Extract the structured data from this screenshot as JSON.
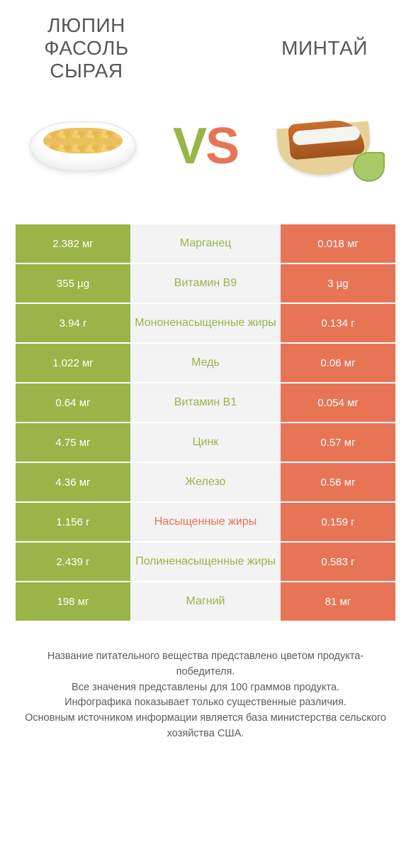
{
  "colors": {
    "left_bg": "#99b548",
    "right_bg": "#e87456",
    "mid_bg": "#f3f3f3",
    "title_color": "#555759",
    "value_color": "#ffffff",
    "footer_color": "#5a5c5e"
  },
  "left_title": "ЛЮПИН ФАСОЛЬ СЫРАЯ",
  "right_title": "МИНТАЙ",
  "vs_v": "V",
  "vs_s": "S",
  "rows": [
    {
      "left": "2.382 мг",
      "label": "Марганец",
      "right": "0.018 мг",
      "label_winner": "left"
    },
    {
      "left": "355 µg",
      "label": "Витамин B9",
      "right": "3 µg",
      "label_winner": "left"
    },
    {
      "left": "3.94 г",
      "label": "Мононенасыщенные жиры",
      "right": "0.134 г",
      "label_winner": "left"
    },
    {
      "left": "1.022 мг",
      "label": "Медь",
      "right": "0.06 мг",
      "label_winner": "left"
    },
    {
      "left": "0.64 мг",
      "label": "Витамин B1",
      "right": "0.054 мг",
      "label_winner": "left"
    },
    {
      "left": "4.75 мг",
      "label": "Цинк",
      "right": "0.57 мг",
      "label_winner": "left"
    },
    {
      "left": "4.36 мг",
      "label": "Железо",
      "right": "0.56 мг",
      "label_winner": "left"
    },
    {
      "left": "1.156 г",
      "label": "Насыщенные жиры",
      "right": "0.159 г",
      "label_winner": "right"
    },
    {
      "left": "2.439 г",
      "label": "Полиненасыщенные жиры",
      "right": "0.583 г",
      "label_winner": "left"
    },
    {
      "left": "198 мг",
      "label": "Магний",
      "right": "81 мг",
      "label_winner": "left"
    }
  ],
  "footer": {
    "line1": "Название питательного вещества представлено цветом продукта-победителя.",
    "line2": "Все значения представлены для 100 граммов продукта.",
    "line3": "Инфографика показывает только существенные различия.",
    "line4": "Основным источником информации является база министерства сельского хозяйства США."
  }
}
